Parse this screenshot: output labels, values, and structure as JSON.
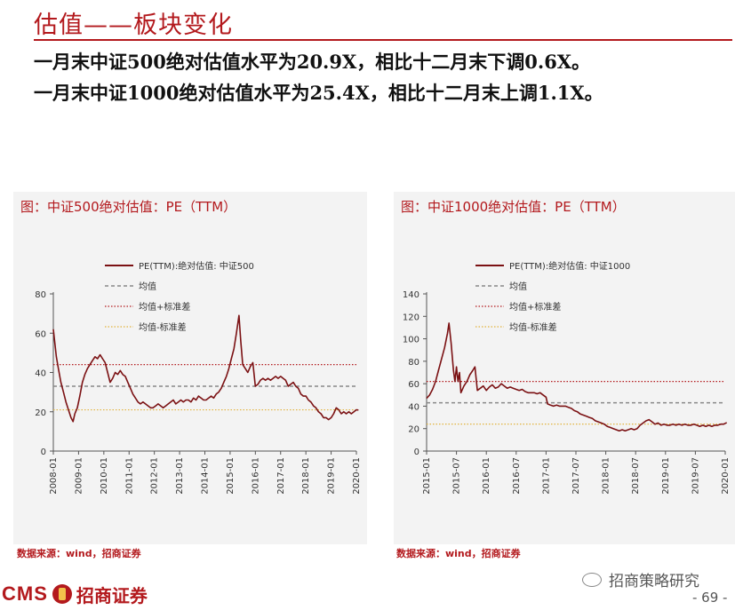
{
  "page": {
    "title": "估值——板块变化",
    "bullets": [
      "一月末中证500绝对估值水平为20.9X，相比十二月末下调0.6X。",
      "一月末中证1000绝对估值水平为25.4X，相比十二月末上调1.1X。"
    ],
    "source_left": "数据来源：wind，招商证券",
    "source_right": "数据来源：wind，招商证券",
    "logo_cms": "CMS",
    "logo_cn": "招商证券",
    "wechat": "招商策略研究",
    "page_number": "- 69 -"
  },
  "colors": {
    "accent": "#b3191d",
    "series": "#7b1113",
    "mean": "#888888",
    "upper": "#b3191d",
    "lower": "#e2b33c",
    "panel_bg": "#f3f3f3"
  },
  "chart_data": [
    {
      "type": "line",
      "panel_title": "图：中证500绝对估值：PE（TTM）",
      "legend": [
        "PE(TTM):绝对估值: 中证500",
        "均值",
        "均值+标准差",
        "均值-标准差"
      ],
      "x_ticks": [
        "2008-01",
        "2009-01",
        "2010-01",
        "2011-01",
        "2012-01",
        "2013-01",
        "2014-01",
        "2015-01",
        "2016-01",
        "2017-01",
        "2018-01",
        "2019-01",
        "2020-01"
      ],
      "ylim": [
        0,
        80
      ],
      "y_ticks": [
        0,
        20,
        40,
        60,
        80
      ],
      "mean": 33,
      "mean_plus_std": 44,
      "mean_minus_std": 21,
      "series": [
        {
          "x": 0,
          "y": 62
        },
        {
          "x": 0.06,
          "y": 55
        },
        {
          "x": 0.12,
          "y": 48
        },
        {
          "x": 0.2,
          "y": 42
        },
        {
          "x": 0.3,
          "y": 35
        },
        {
          "x": 0.4,
          "y": 30
        },
        {
          "x": 0.5,
          "y": 25
        },
        {
          "x": 0.6,
          "y": 21
        },
        {
          "x": 0.7,
          "y": 17
        },
        {
          "x": 0.78,
          "y": 15
        },
        {
          "x": 0.85,
          "y": 19
        },
        {
          "x": 0.95,
          "y": 22
        },
        {
          "x": 1.05,
          "y": 28
        },
        {
          "x": 1.15,
          "y": 35
        },
        {
          "x": 1.25,
          "y": 39
        },
        {
          "x": 1.35,
          "y": 42
        },
        {
          "x": 1.45,
          "y": 44
        },
        {
          "x": 1.55,
          "y": 46
        },
        {
          "x": 1.65,
          "y": 48
        },
        {
          "x": 1.75,
          "y": 47
        },
        {
          "x": 1.85,
          "y": 49
        },
        {
          "x": 1.95,
          "y": 47
        },
        {
          "x": 2.05,
          "y": 45
        },
        {
          "x": 2.15,
          "y": 40
        },
        {
          "x": 2.25,
          "y": 35
        },
        {
          "x": 2.35,
          "y": 37
        },
        {
          "x": 2.45,
          "y": 40
        },
        {
          "x": 2.55,
          "y": 39
        },
        {
          "x": 2.65,
          "y": 41
        },
        {
          "x": 2.75,
          "y": 39
        },
        {
          "x": 2.85,
          "y": 38
        },
        {
          "x": 2.95,
          "y": 35
        },
        {
          "x": 3.05,
          "y": 32
        },
        {
          "x": 3.15,
          "y": 29
        },
        {
          "x": 3.25,
          "y": 27
        },
        {
          "x": 3.35,
          "y": 25
        },
        {
          "x": 3.45,
          "y": 24
        },
        {
          "x": 3.55,
          "y": 25
        },
        {
          "x": 3.65,
          "y": 24
        },
        {
          "x": 3.75,
          "y": 23
        },
        {
          "x": 3.85,
          "y": 22
        },
        {
          "x": 3.95,
          "y": 22
        },
        {
          "x": 4.05,
          "y": 23
        },
        {
          "x": 4.15,
          "y": 24
        },
        {
          "x": 4.25,
          "y": 23
        },
        {
          "x": 4.35,
          "y": 22
        },
        {
          "x": 4.45,
          "y": 23
        },
        {
          "x": 4.55,
          "y": 24
        },
        {
          "x": 4.65,
          "y": 25
        },
        {
          "x": 4.75,
          "y": 26
        },
        {
          "x": 4.85,
          "y": 24
        },
        {
          "x": 4.95,
          "y": 25
        },
        {
          "x": 5.05,
          "y": 26
        },
        {
          "x": 5.15,
          "y": 25
        },
        {
          "x": 5.25,
          "y": 26
        },
        {
          "x": 5.35,
          "y": 26
        },
        {
          "x": 5.45,
          "y": 25
        },
        {
          "x": 5.55,
          "y": 27
        },
        {
          "x": 5.65,
          "y": 26
        },
        {
          "x": 5.75,
          "y": 28
        },
        {
          "x": 5.85,
          "y": 27
        },
        {
          "x": 5.95,
          "y": 26
        },
        {
          "x": 6.05,
          "y": 26
        },
        {
          "x": 6.15,
          "y": 27
        },
        {
          "x": 6.25,
          "y": 28
        },
        {
          "x": 6.35,
          "y": 27
        },
        {
          "x": 6.45,
          "y": 29
        },
        {
          "x": 6.55,
          "y": 30
        },
        {
          "x": 6.65,
          "y": 32
        },
        {
          "x": 6.75,
          "y": 35
        },
        {
          "x": 6.85,
          "y": 38
        },
        {
          "x": 6.95,
          "y": 42
        },
        {
          "x": 7.05,
          "y": 47
        },
        {
          "x": 7.15,
          "y": 52
        },
        {
          "x": 7.25,
          "y": 60
        },
        {
          "x": 7.35,
          "y": 69
        },
        {
          "x": 7.42,
          "y": 56
        },
        {
          "x": 7.5,
          "y": 44
        },
        {
          "x": 7.6,
          "y": 42
        },
        {
          "x": 7.7,
          "y": 40
        },
        {
          "x": 7.8,
          "y": 43
        },
        {
          "x": 7.9,
          "y": 45
        },
        {
          "x": 8.0,
          "y": 33
        },
        {
          "x": 8.1,
          "y": 34
        },
        {
          "x": 8.2,
          "y": 36
        },
        {
          "x": 8.3,
          "y": 37
        },
        {
          "x": 8.4,
          "y": 36
        },
        {
          "x": 8.5,
          "y": 37
        },
        {
          "x": 8.6,
          "y": 36
        },
        {
          "x": 8.7,
          "y": 37
        },
        {
          "x": 8.8,
          "y": 38
        },
        {
          "x": 8.9,
          "y": 37
        },
        {
          "x": 9.0,
          "y": 38
        },
        {
          "x": 9.1,
          "y": 37
        },
        {
          "x": 9.2,
          "y": 36
        },
        {
          "x": 9.3,
          "y": 33
        },
        {
          "x": 9.4,
          "y": 34
        },
        {
          "x": 9.5,
          "y": 35
        },
        {
          "x": 9.6,
          "y": 33
        },
        {
          "x": 9.7,
          "y": 32
        },
        {
          "x": 9.8,
          "y": 29
        },
        {
          "x": 9.9,
          "y": 28
        },
        {
          "x": 10.0,
          "y": 28
        },
        {
          "x": 10.1,
          "y": 26
        },
        {
          "x": 10.2,
          "y": 25
        },
        {
          "x": 10.3,
          "y": 23
        },
        {
          "x": 10.4,
          "y": 22
        },
        {
          "x": 10.5,
          "y": 20
        },
        {
          "x": 10.6,
          "y": 19
        },
        {
          "x": 10.7,
          "y": 17
        },
        {
          "x": 10.8,
          "y": 17
        },
        {
          "x": 10.9,
          "y": 16
        },
        {
          "x": 11.0,
          "y": 17
        },
        {
          "x": 11.1,
          "y": 19
        },
        {
          "x": 11.2,
          "y": 22
        },
        {
          "x": 11.3,
          "y": 21
        },
        {
          "x": 11.4,
          "y": 19
        },
        {
          "x": 11.5,
          "y": 20
        },
        {
          "x": 11.6,
          "y": 19
        },
        {
          "x": 11.7,
          "y": 20
        },
        {
          "x": 11.8,
          "y": 19
        },
        {
          "x": 11.9,
          "y": 20
        },
        {
          "x": 12.0,
          "y": 21
        },
        {
          "x": 12.08,
          "y": 20.9
        }
      ]
    },
    {
      "type": "line",
      "panel_title": "图：中证1000绝对估值：PE（TTM）",
      "legend": [
        "PE(TTM):绝对估值: 中证1000",
        "均值",
        "均值+标准差",
        "均值-标准差"
      ],
      "x_ticks": [
        "2015-01",
        "2015-07",
        "2016-01",
        "2016-07",
        "2017-01",
        "2017-07",
        "2018-01",
        "2018-07",
        "2019-01",
        "2019-07",
        "2020-01"
      ],
      "ylim": [
        0,
        140
      ],
      "y_ticks": [
        0,
        20,
        40,
        60,
        80,
        100,
        120,
        140
      ],
      "mean": 43,
      "mean_plus_std": 62,
      "mean_minus_std": 24,
      "series": [
        {
          "x": 0,
          "y": 47
        },
        {
          "x": 0.1,
          "y": 50
        },
        {
          "x": 0.2,
          "y": 55
        },
        {
          "x": 0.3,
          "y": 62
        },
        {
          "x": 0.4,
          "y": 72
        },
        {
          "x": 0.5,
          "y": 82
        },
        {
          "x": 0.6,
          "y": 92
        },
        {
          "x": 0.7,
          "y": 105
        },
        {
          "x": 0.75,
          "y": 114
        },
        {
          "x": 0.82,
          "y": 96
        },
        {
          "x": 0.9,
          "y": 72
        },
        {
          "x": 0.95,
          "y": 62
        },
        {
          "x": 1.0,
          "y": 75
        },
        {
          "x": 1.05,
          "y": 62
        },
        {
          "x": 1.1,
          "y": 70
        },
        {
          "x": 1.15,
          "y": 52
        },
        {
          "x": 1.25,
          "y": 58
        },
        {
          "x": 1.35,
          "y": 62
        },
        {
          "x": 1.45,
          "y": 68
        },
        {
          "x": 1.55,
          "y": 72
        },
        {
          "x": 1.62,
          "y": 75
        },
        {
          "x": 1.7,
          "y": 54
        },
        {
          "x": 1.8,
          "y": 56
        },
        {
          "x": 1.9,
          "y": 58
        },
        {
          "x": 2.0,
          "y": 54
        },
        {
          "x": 2.1,
          "y": 57
        },
        {
          "x": 2.2,
          "y": 59
        },
        {
          "x": 2.3,
          "y": 56
        },
        {
          "x": 2.4,
          "y": 57
        },
        {
          "x": 2.5,
          "y": 60
        },
        {
          "x": 2.6,
          "y": 58
        },
        {
          "x": 2.7,
          "y": 56
        },
        {
          "x": 2.8,
          "y": 57
        },
        {
          "x": 2.9,
          "y": 56
        },
        {
          "x": 3.0,
          "y": 55
        },
        {
          "x": 3.1,
          "y": 54
        },
        {
          "x": 3.2,
          "y": 55
        },
        {
          "x": 3.3,
          "y": 53
        },
        {
          "x": 3.4,
          "y": 52
        },
        {
          "x": 3.5,
          "y": 52
        },
        {
          "x": 3.6,
          "y": 52
        },
        {
          "x": 3.7,
          "y": 51
        },
        {
          "x": 3.8,
          "y": 52
        },
        {
          "x": 3.9,
          "y": 50
        },
        {
          "x": 4.0,
          "y": 48
        },
        {
          "x": 4.05,
          "y": 42
        },
        {
          "x": 4.15,
          "y": 41
        },
        {
          "x": 4.25,
          "y": 40
        },
        {
          "x": 4.35,
          "y": 41
        },
        {
          "x": 4.45,
          "y": 40
        },
        {
          "x": 4.55,
          "y": 40
        },
        {
          "x": 4.65,
          "y": 40
        },
        {
          "x": 4.75,
          "y": 39
        },
        {
          "x": 4.85,
          "y": 38
        },
        {
          "x": 4.95,
          "y": 36
        },
        {
          "x": 5.05,
          "y": 35
        },
        {
          "x": 5.15,
          "y": 33
        },
        {
          "x": 5.25,
          "y": 32
        },
        {
          "x": 5.35,
          "y": 31
        },
        {
          "x": 5.45,
          "y": 30
        },
        {
          "x": 5.55,
          "y": 29
        },
        {
          "x": 5.65,
          "y": 27
        },
        {
          "x": 5.75,
          "y": 26
        },
        {
          "x": 5.85,
          "y": 25
        },
        {
          "x": 5.95,
          "y": 24
        },
        {
          "x": 6.05,
          "y": 22
        },
        {
          "x": 6.15,
          "y": 21
        },
        {
          "x": 6.25,
          "y": 20
        },
        {
          "x": 6.35,
          "y": 19
        },
        {
          "x": 6.45,
          "y": 18
        },
        {
          "x": 6.55,
          "y": 19
        },
        {
          "x": 6.65,
          "y": 18
        },
        {
          "x": 6.75,
          "y": 19
        },
        {
          "x": 6.85,
          "y": 20
        },
        {
          "x": 6.95,
          "y": 19
        },
        {
          "x": 7.05,
          "y": 20
        },
        {
          "x": 7.15,
          "y": 23
        },
        {
          "x": 7.25,
          "y": 25
        },
        {
          "x": 7.35,
          "y": 27
        },
        {
          "x": 7.45,
          "y": 28
        },
        {
          "x": 7.55,
          "y": 26
        },
        {
          "x": 7.65,
          "y": 24
        },
        {
          "x": 7.75,
          "y": 25
        },
        {
          "x": 7.85,
          "y": 23
        },
        {
          "x": 7.95,
          "y": 24
        },
        {
          "x": 8.05,
          "y": 23
        },
        {
          "x": 8.15,
          "y": 23
        },
        {
          "x": 8.25,
          "y": 24
        },
        {
          "x": 8.35,
          "y": 23
        },
        {
          "x": 8.45,
          "y": 24
        },
        {
          "x": 8.55,
          "y": 23
        },
        {
          "x": 8.65,
          "y": 24
        },
        {
          "x": 8.75,
          "y": 23
        },
        {
          "x": 8.85,
          "y": 23
        },
        {
          "x": 8.95,
          "y": 24
        },
        {
          "x": 9.05,
          "y": 23
        },
        {
          "x": 9.15,
          "y": 22
        },
        {
          "x": 9.25,
          "y": 23
        },
        {
          "x": 9.35,
          "y": 22
        },
        {
          "x": 9.45,
          "y": 23
        },
        {
          "x": 9.55,
          "y": 22
        },
        {
          "x": 9.65,
          "y": 23
        },
        {
          "x": 9.75,
          "y": 23
        },
        {
          "x": 9.85,
          "y": 24
        },
        {
          "x": 9.95,
          "y": 24
        },
        {
          "x": 10.05,
          "y": 25.4
        }
      ]
    }
  ]
}
